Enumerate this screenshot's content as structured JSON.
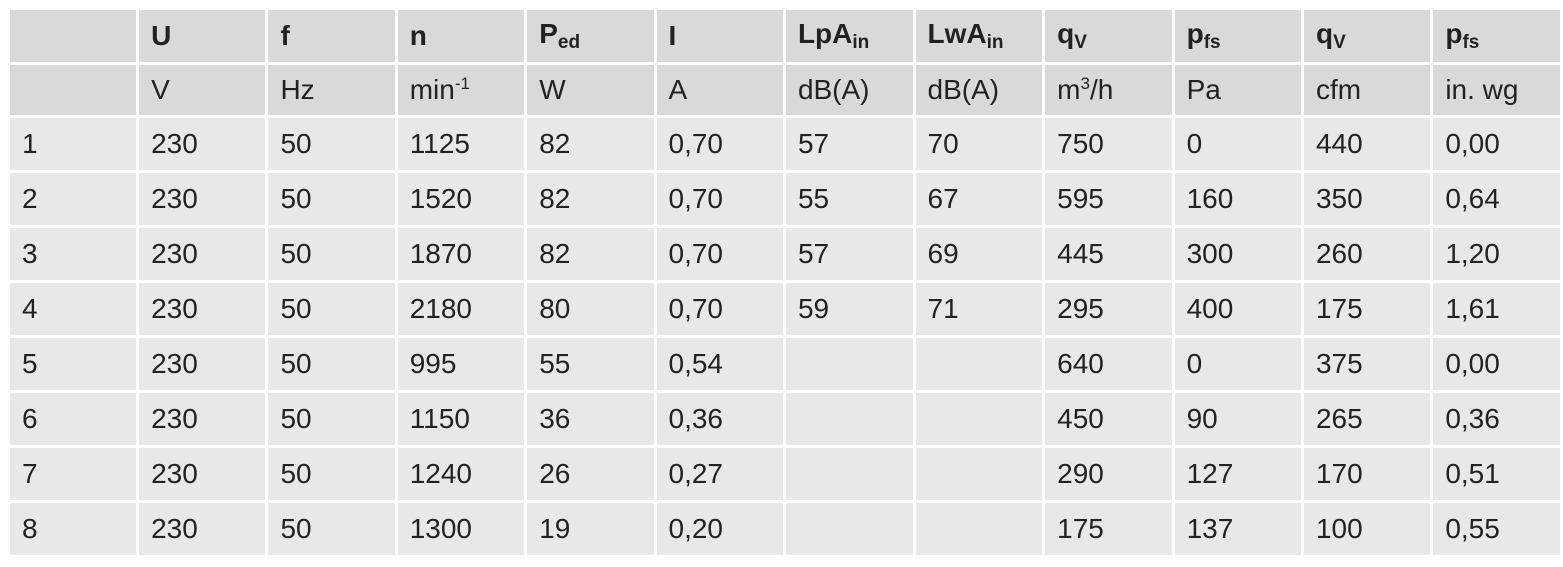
{
  "table": {
    "header": [
      {
        "text": "U"
      },
      {
        "text": "f"
      },
      {
        "text": "n"
      },
      {
        "text": "P",
        "sub": "ed"
      },
      {
        "text": "I"
      },
      {
        "text": "LpA",
        "sub": "in"
      },
      {
        "text": "LwA",
        "sub": "in"
      },
      {
        "text": "q",
        "sub": "V"
      },
      {
        "text": "p",
        "sub": "fs"
      },
      {
        "text": "q",
        "sub": "V"
      },
      {
        "text": "p",
        "sub": "fs"
      }
    ],
    "units": [
      {
        "text": "V"
      },
      {
        "text": "Hz"
      },
      {
        "text": "min",
        "sup": "-1"
      },
      {
        "text": "W"
      },
      {
        "text": "A"
      },
      {
        "text": "dB(A)"
      },
      {
        "text": "dB(A)"
      },
      {
        "text": "m",
        "sup": "3",
        "after": "/h"
      },
      {
        "text": "Pa"
      },
      {
        "text": "cfm"
      },
      {
        "text": "in. wg"
      }
    ],
    "rows": [
      [
        "1",
        "230",
        "50",
        "1125",
        "82",
        "0,70",
        "57",
        "70",
        "750",
        "0",
        "440",
        "0,00"
      ],
      [
        "2",
        "230",
        "50",
        "1520",
        "82",
        "0,70",
        "55",
        "67",
        "595",
        "160",
        "350",
        "0,64"
      ],
      [
        "3",
        "230",
        "50",
        "1870",
        "82",
        "0,70",
        "57",
        "69",
        "445",
        "300",
        "260",
        "1,20"
      ],
      [
        "4",
        "230",
        "50",
        "2180",
        "80",
        "0,70",
        "59",
        "71",
        "295",
        "400",
        "175",
        "1,61"
      ],
      [
        "5",
        "230",
        "50",
        "995",
        "55",
        "0,54",
        null,
        null,
        "640",
        "0",
        "375",
        "0,00"
      ],
      [
        "6",
        "230",
        "50",
        "1150",
        "36",
        "0,36",
        null,
        null,
        "450",
        "90",
        "265",
        "0,36"
      ],
      [
        "7",
        "230",
        "50",
        "1240",
        "26",
        "0,27",
        null,
        null,
        "290",
        "127",
        "170",
        "0,51"
      ],
      [
        "8",
        "230",
        "50",
        "1300",
        "19",
        "0,20",
        null,
        null,
        "175",
        "137",
        "100",
        "0,55"
      ]
    ]
  }
}
